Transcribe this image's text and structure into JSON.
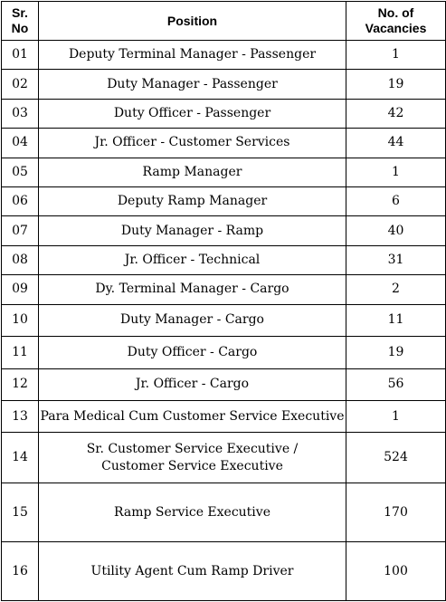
{
  "table": {
    "headers": {
      "sr_line1": "Sr.",
      "sr_line2": "No",
      "position": "Position",
      "vac_line1": "No. of",
      "vac_line2": "Vacancies"
    },
    "rows": [
      {
        "sr": "01",
        "position": "Deputy Terminal Manager - Passenger",
        "vacancies": "1"
      },
      {
        "sr": "02",
        "position": "Duty Manager - Passenger",
        "vacancies": "19"
      },
      {
        "sr": "03",
        "position": "Duty Officer  - Passenger",
        "vacancies": "42"
      },
      {
        "sr": "04",
        "position": "Jr. Officer - Customer Services",
        "vacancies": "44"
      },
      {
        "sr": "05",
        "position": "Ramp Manager",
        "vacancies": "1"
      },
      {
        "sr": "06",
        "position": "Deputy Ramp Manager",
        "vacancies": "6"
      },
      {
        "sr": "07",
        "position": "Duty Manager - Ramp",
        "vacancies": "40"
      },
      {
        "sr": "08",
        "position": "Jr. Officer - Technical",
        "vacancies": "31"
      },
      {
        "sr": "09",
        "position": "Dy. Terminal Manager - Cargo",
        "vacancies": "2"
      },
      {
        "sr": "10",
        "position": "Duty Manager - Cargo",
        "vacancies": "11"
      },
      {
        "sr": "11",
        "position": "Duty Officer  - Cargo",
        "vacancies": "19"
      },
      {
        "sr": "12",
        "position": "Jr. Officer - Cargo",
        "vacancies": "56"
      },
      {
        "sr": "13",
        "position": "Para Medical Cum Customer Service Executive",
        "vacancies": "1"
      },
      {
        "sr": "14",
        "position_line1": "Sr. Customer Service Executive /",
        "position_line2": "Customer Service Executive",
        "vacancies": "524"
      },
      {
        "sr": "15",
        "position": "Ramp Service Executive",
        "vacancies": "170"
      },
      {
        "sr": "16",
        "position": "Utility Agent Cum Ramp Driver",
        "vacancies": "100"
      }
    ]
  }
}
